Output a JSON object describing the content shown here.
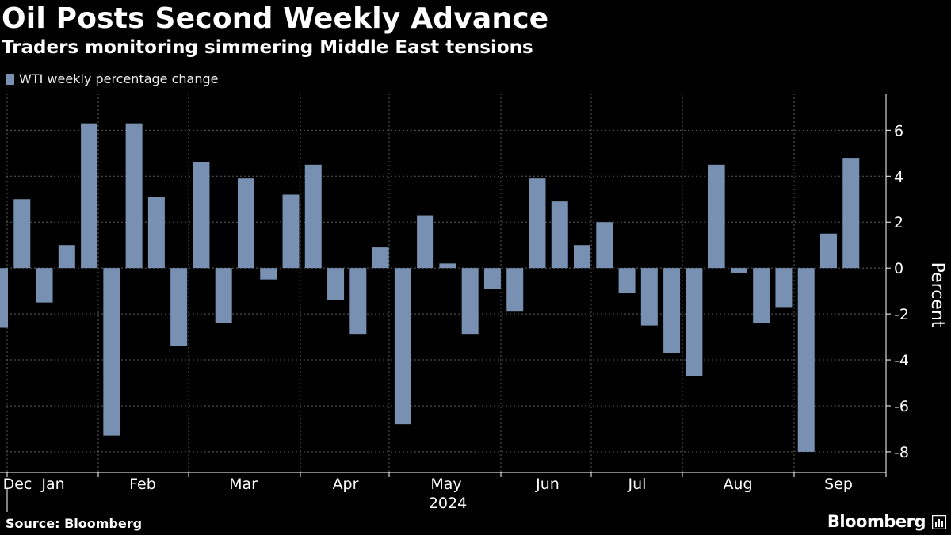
{
  "header": {
    "title": "Oil Posts Second Weekly Advance",
    "subtitle": "Traders monitoring simmering Middle East tensions"
  },
  "footer": {
    "source": "Source: Bloomberg",
    "brand": "Bloomberg",
    "brand_icon": "bloomberg-terminal-icon"
  },
  "colors": {
    "background": "#000000",
    "bar": "#7891B3",
    "grid": "#5A5A5A",
    "text": "#FFFFFF"
  },
  "chart_data": {
    "type": "bar",
    "title": "Oil Posts Second Weekly Advance",
    "subtitle": "Traders monitoring simmering Middle East tensions",
    "legend": [
      "WTI weekly percentage change"
    ],
    "ylabel": "Percent",
    "xlabel": "2024",
    "ylim": [
      -8.9,
      7.6
    ],
    "yticks": [
      6,
      4,
      2,
      0,
      -2,
      -4,
      -6,
      -8
    ],
    "grid": true,
    "x_ticks": [
      "Dec",
      "Jan",
      "Feb",
      "Mar",
      "Apr",
      "May",
      "Jun",
      "Jul",
      "Aug",
      "Sep"
    ],
    "series": [
      {
        "name": "WTI weekly percentage change",
        "values": [
          -2.6,
          3.0,
          -1.5,
          1.0,
          6.3,
          -7.3,
          6.3,
          3.1,
          -3.4,
          4.6,
          -2.4,
          3.9,
          -0.5,
          3.2,
          4.5,
          -1.4,
          -2.9,
          0.9,
          -6.8,
          2.3,
          0.2,
          -2.9,
          -0.9,
          -1.9,
          3.9,
          2.9,
          1.0,
          2.0,
          -1.1,
          -2.5,
          -3.7,
          -4.7,
          4.5,
          -0.2,
          -2.4,
          -1.7,
          -8.0,
          1.5,
          4.8
        ]
      }
    ]
  }
}
